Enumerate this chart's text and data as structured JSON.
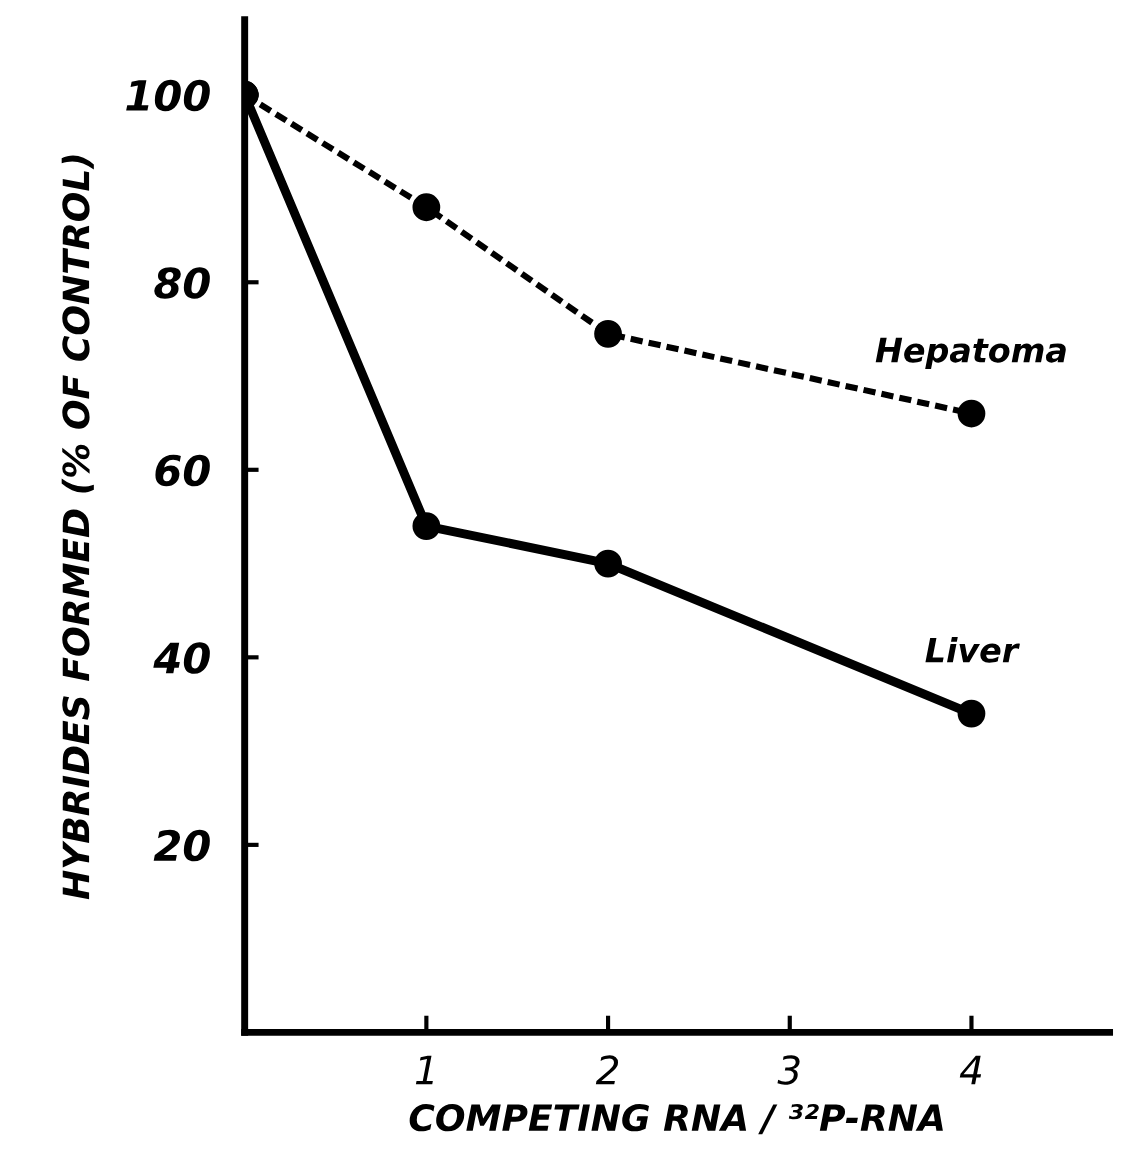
{
  "chart_data": {
    "type": "line",
    "xlabel": "COMPETING RNA / ³²P-RNA",
    "ylabel": "HYBRIDES FORMED (% OF CONTROL)",
    "x": [
      0,
      1,
      2,
      4
    ],
    "series": [
      {
        "name": "Hepatoma",
        "color": "#000000",
        "values": [
          100,
          88,
          74.5,
          66
        ],
        "line_style": "dashed"
      },
      {
        "name": "Liver",
        "color": "#000000",
        "values": [
          100,
          54,
          50,
          34
        ],
        "line_style": "solid"
      }
    ],
    "xlim": [
      0,
      4.76
    ],
    "ylim": [
      0,
      108
    ],
    "xticks": [
      1,
      2,
      3,
      4
    ],
    "yticks": [
      20,
      40,
      60,
      80,
      100
    ],
    "marker": "circle",
    "grid": false,
    "legend": false
  }
}
